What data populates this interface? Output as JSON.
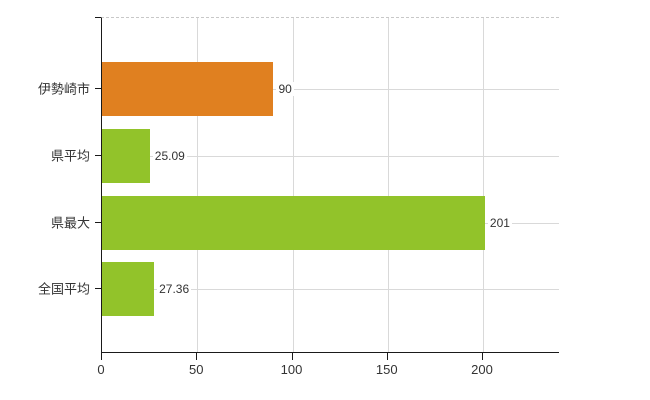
{
  "chart_data": {
    "type": "bar",
    "orientation": "horizontal",
    "title": "",
    "xlabel": "",
    "ylabel": "",
    "categories": [
      "伊勢崎市",
      "県平均",
      "県最大",
      "全国平均"
    ],
    "values": [
      90,
      25.09,
      201,
      27.36
    ],
    "value_labels": [
      "90",
      "25.09",
      "201",
      "27.36"
    ],
    "bar_colors": [
      "#e08020",
      "#92c32a",
      "#92c32a",
      "#92c32a"
    ],
    "xlim": [
      0,
      240
    ],
    "x_ticks": [
      0,
      50,
      100,
      150,
      200
    ],
    "x_tick_labels": [
      "0",
      "50",
      "100",
      "150",
      "200"
    ],
    "grid": true,
    "legend": false
  },
  "style": {
    "background": "#ffffff",
    "axis_color": "#1a1a1a",
    "grid_color": "#d9d9d9",
    "top_border_color": "#c8c8c8",
    "text_color": "#333333"
  }
}
